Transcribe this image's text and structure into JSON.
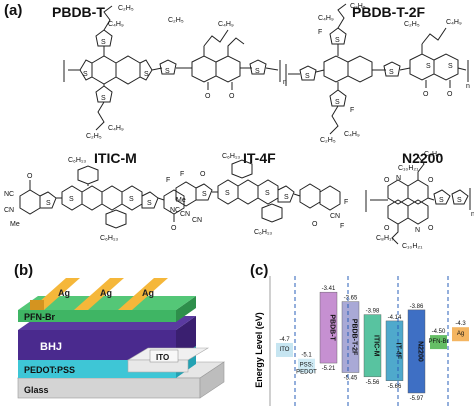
{
  "panels": {
    "a": "(a)",
    "b": "(b)",
    "c": "(c)"
  },
  "molecules": {
    "pbdbt": {
      "name": "PBDB-T",
      "subs": [
        "C₂H₅",
        "C₄H₉",
        "C₂H₅",
        "C₄H₉",
        "C₂H₅",
        "C₄H₉"
      ],
      "atoms": [
        "S",
        "S",
        "S",
        "S",
        "S",
        "S",
        "O",
        "O"
      ],
      "n": "n"
    },
    "pbdbt2f": {
      "name": "PBDB-T-2F",
      "subs": [
        "C₂H₅",
        "C₄H₉",
        "C₂H₅",
        "C₄H₉",
        "C₂H₅",
        "C₄H₉"
      ],
      "atoms": [
        "S",
        "S",
        "S",
        "S",
        "S",
        "S",
        "O",
        "O",
        "F",
        "F"
      ],
      "n": "n"
    },
    "iticm": {
      "name": "ITIC-M",
      "subs": [
        "C₆H₁₃",
        "C₆H₁₃"
      ],
      "atoms": [
        "O",
        "NC",
        "CN",
        "Me",
        "S",
        "S",
        "S",
        "S",
        "O",
        "CN",
        "Me"
      ]
    },
    "it4f": {
      "name": "IT-4F",
      "subs": [
        "C₆H₁₃",
        "C₆H₁₃"
      ],
      "atoms": [
        "F",
        "F",
        "O",
        "NC",
        "CN",
        "S",
        "S",
        "S",
        "S",
        "O",
        "CN",
        "F",
        "F"
      ]
    },
    "n2200": {
      "name": "N2200",
      "subs": [
        "C₁₀H₂₁",
        "C₈H₁₇",
        "C₁₀H₂₁",
        "C₈H₁₇"
      ],
      "atoms": [
        "O",
        "N",
        "O",
        "S",
        "S",
        "O",
        "N",
        "O"
      ],
      "n": "n"
    }
  },
  "device": {
    "layers": [
      "Glass",
      "PEDOT:PSS",
      "BHJ",
      "PFN-Br"
    ],
    "electrode": "Ag",
    "ito": "ITO"
  },
  "chart_data": {
    "type": "energy-level diagram",
    "ylabel": "Energy Level (eV)",
    "items": [
      {
        "name": "ITO",
        "value": -4.7,
        "label": "-4.7",
        "color": "#b8dfee"
      },
      {
        "name": "PSS:\nPEDOT",
        "value": -5.1,
        "label": "-5.1",
        "color": "#c4e6f2"
      },
      {
        "name": "PBDB-T",
        "lumo": -3.41,
        "homo": -5.21,
        "lumo_label": "-3.41",
        "homo_label": "-5.21",
        "color": "#c690d1"
      },
      {
        "name": "PBDB-T-2F",
        "lumo": -3.65,
        "homo": -5.45,
        "lumo_label": "-3.65",
        "homo_label": "-5.45",
        "color": "#a9a9d6"
      },
      {
        "name": "ITIC-M",
        "lumo": -3.98,
        "homo": -5.56,
        "lumo_label": "-3.98",
        "homo_label": "-5.56",
        "color": "#58c3a0"
      },
      {
        "name": "IT-4F",
        "lumo": -4.14,
        "homo": -5.66,
        "lumo_label": "-4.14",
        "homo_label": "-5.66",
        "color": "#4fa9cc"
      },
      {
        "name": "N2200",
        "lumo": -3.86,
        "homo": -5.97,
        "lumo_label": "-3.86",
        "homo_label": "-5.97",
        "color": "#3e6fc4"
      },
      {
        "name": "PFN-Br",
        "value": -4.5,
        "label": "-4.50",
        "color": "#3fae3f"
      },
      {
        "name": "Ag",
        "value": -4.3,
        "label": "-4.3",
        "color": "#f1a23a"
      }
    ],
    "ylim": [
      -6.3,
      -3.0
    ]
  }
}
